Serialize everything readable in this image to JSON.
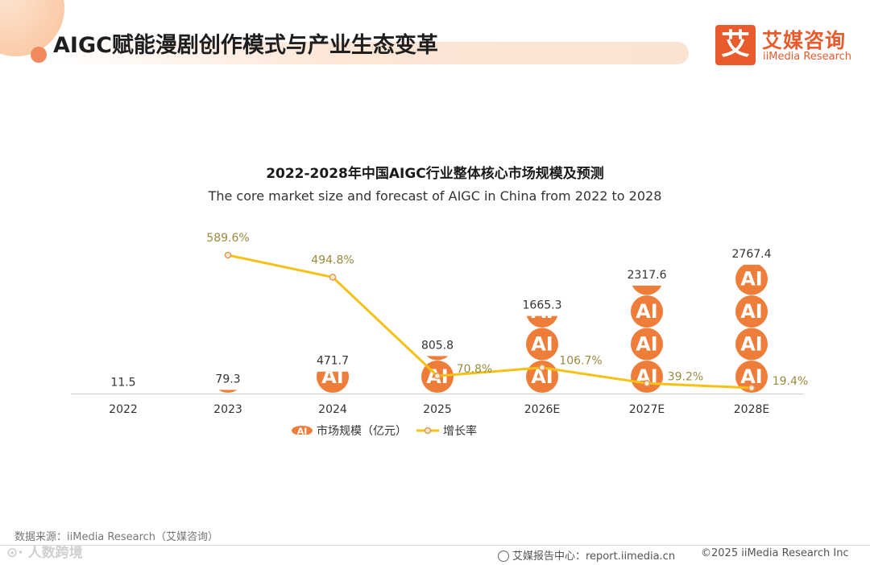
{
  "header": {
    "title": "AIGC赋能漫剧创作模式与产业生态变革",
    "logo_mark": "艾",
    "logo_cn": "艾媒咨询",
    "logo_en": "iiMedia Research"
  },
  "chart_data": {
    "type": "bar+line",
    "title": "2022-2028年中国AIGC行业整体核心市场规模及预测",
    "subtitle": "The core market size and forecast of AIGC in China from 2022 to 2028",
    "categories": [
      "2022",
      "2023",
      "2024",
      "2025",
      "2026E",
      "2027E",
      "2028E"
    ],
    "series": [
      {
        "name": "市场规模（亿元）",
        "kind": "pictogram-bar",
        "icon_label": "AI",
        "values": [
          11.5,
          79.3,
          471.7,
          805.8,
          1665.3,
          2317.6,
          2767.4
        ]
      },
      {
        "name": "增长率",
        "kind": "line",
        "values": [
          null,
          589.6,
          494.8,
          70.8,
          106.7,
          39.2,
          19.4
        ],
        "labels": [
          "",
          "589.6%",
          "494.8%",
          "70.8%",
          "106.7%",
          "39.2%",
          "19.4%"
        ]
      }
    ],
    "bar_labels": [
      "11.5",
      "79.3",
      "471.7",
      "805.8",
      "1665.3",
      "2317.6",
      "2767.4"
    ],
    "legend": [
      "市场规模（亿元）",
      "增长率"
    ],
    "legend_position": "bottom",
    "colors": {
      "bar": "#ee7d3a",
      "line": "#f5c116",
      "line_label": "#9a8a3e",
      "marker_fill": "#fdebd0",
      "marker_stroke": "#e1995a"
    }
  },
  "footer": {
    "source": "数据来源：iiMedia Research（艾媒咨询）",
    "watermark": "⊙· 人数跨境",
    "site": "艾媒报告中心：report.iimedia.cn",
    "copyright": "©2025  iiMedia Research  Inc"
  }
}
